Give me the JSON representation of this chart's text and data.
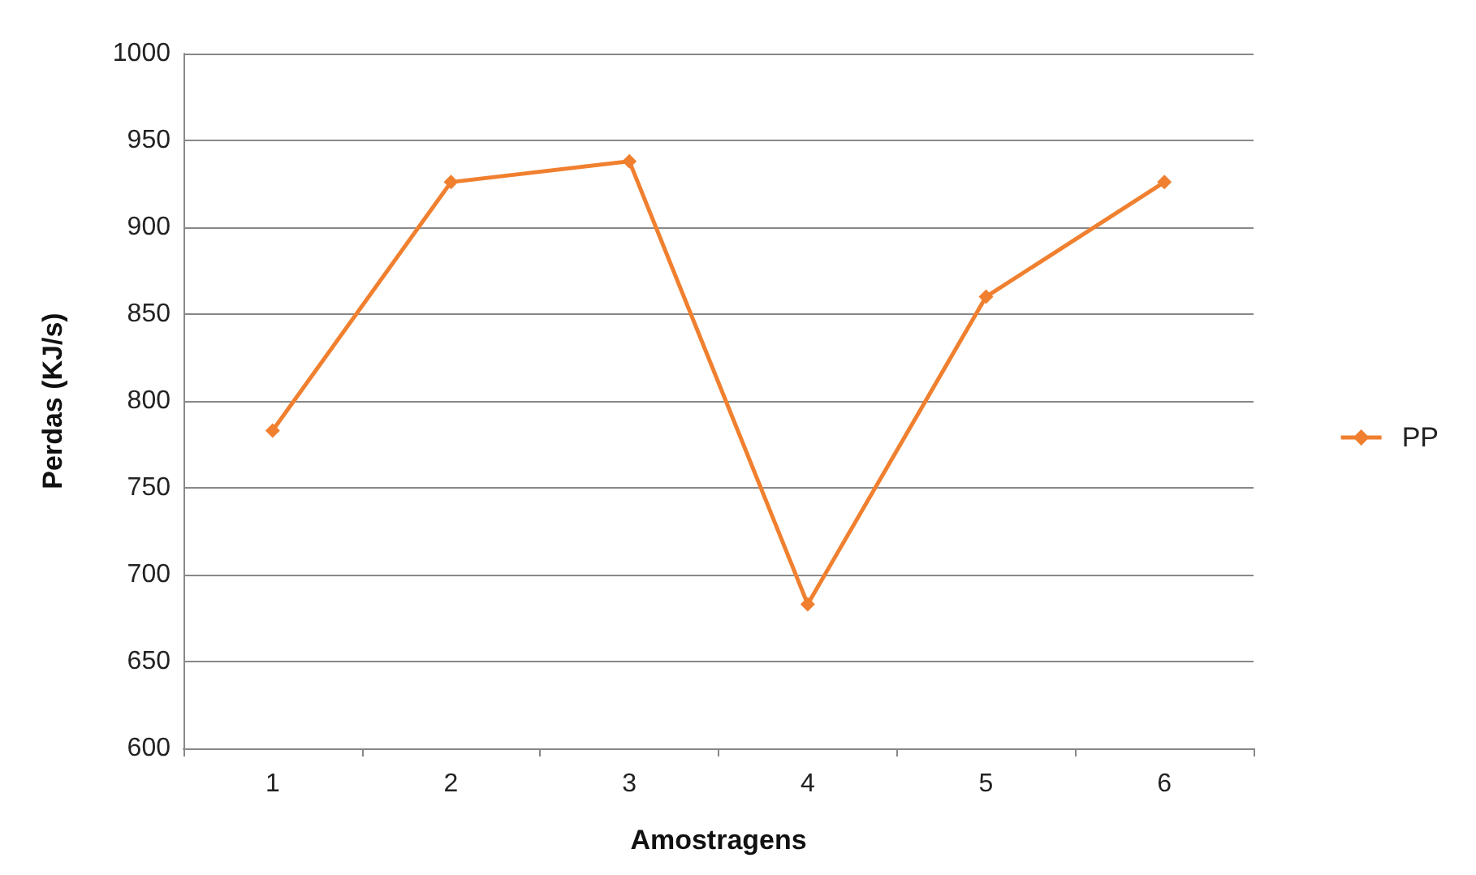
{
  "chart_data": {
    "type": "line",
    "xlabel": "Amostragens",
    "ylabel": "Perdas (KJ/s)",
    "categories": [
      "1",
      "2",
      "3",
      "4",
      "5",
      "6"
    ],
    "series": [
      {
        "name": "PP",
        "color": "#f0802f",
        "values": [
          783,
          926,
          938,
          683,
          860,
          926
        ]
      }
    ],
    "ylim": [
      600,
      1000
    ],
    "yticks": [
      600,
      650,
      700,
      750,
      800,
      850,
      900,
      950,
      1000
    ],
    "grid": "y",
    "legend": "right",
    "marker": "diamond"
  }
}
